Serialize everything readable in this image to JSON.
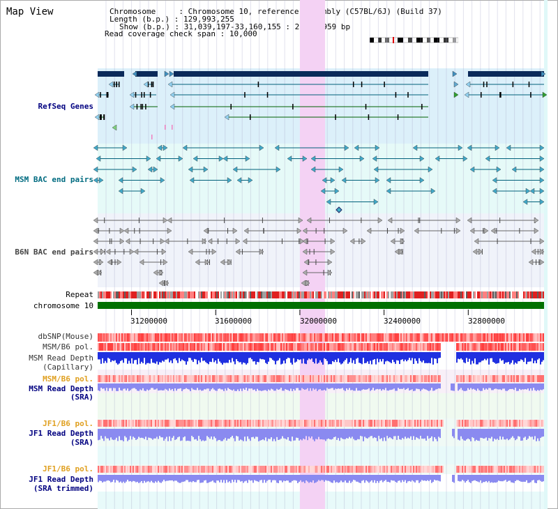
{
  "page": {
    "title": "Map View"
  },
  "info": {
    "chromosome_label": "Chromosome",
    "chromosome_value": "Chromosome 10, reference assembly (C57BL/6J) (Build 37)",
    "length_label": "Length (b.p.)",
    "length_value": "129,993,255",
    "show_label": "Show (b.p.)",
    "show_value": "31,039,197-33,160,155 : 2,120,959 bp",
    "coverage_label": "Read coverage check span",
    "coverage_value": "10,000"
  },
  "tracks": {
    "refseq": "RefSeq Genes",
    "msm_bac": "MSM BAC end pairs",
    "b6n_bac": "B6N BAC end pairs",
    "repeat": "Repeat",
    "chromosome": "chromosome 10",
    "dbsnp": "dbSNP(Mouse)",
    "msm_b6_pol_1": "MSM/B6 pol.",
    "msm_read_depth_cap_1": "MSM Read Depth",
    "msm_read_depth_cap_2": "(Capillary)",
    "msm_b6_pol_2": "MSM/B6 pol.",
    "msm_read_depth_sra_1": "MSM Read Depth",
    "msm_read_depth_sra_2": "(SRA)",
    "jf1_b6_pol_1": "JF1/B6 pol.",
    "jf1_read_depth_sra_1": "JF1 Read Depth",
    "jf1_read_depth_sra_2": "(SRA)",
    "jf1_b6_pol_2": "JF1/B6 pol.",
    "jf1_read_depth_trim_1": "JF1 Read Depth",
    "jf1_read_depth_trim_2": "(SRA trimmed)"
  },
  "axis": {
    "ticks": [
      "31200000",
      "31600000",
      "32000000",
      "32400000",
      "32800000"
    ],
    "tick_positions_bp": [
      31200000,
      31600000,
      32000000,
      32400000,
      32800000
    ],
    "range_bp": [
      31039197,
      33160155
    ]
  },
  "highlight_bp": [
    32000000,
    32120000
  ],
  "colors": {
    "refseq_bg": "#dcf0fa",
    "msm_bg": "#e6faf8",
    "b6n_bg": "#f0f3fa",
    "lower_bg": "#e8fafa",
    "highlight": "#f4d2f4",
    "navy": "#0a2a5a",
    "teal": "#00607a",
    "chromosome_green": "#007000",
    "pol_red": "#ff6060",
    "depth_blue": "#2030e0",
    "depth_light": "#8a8af0"
  }
}
